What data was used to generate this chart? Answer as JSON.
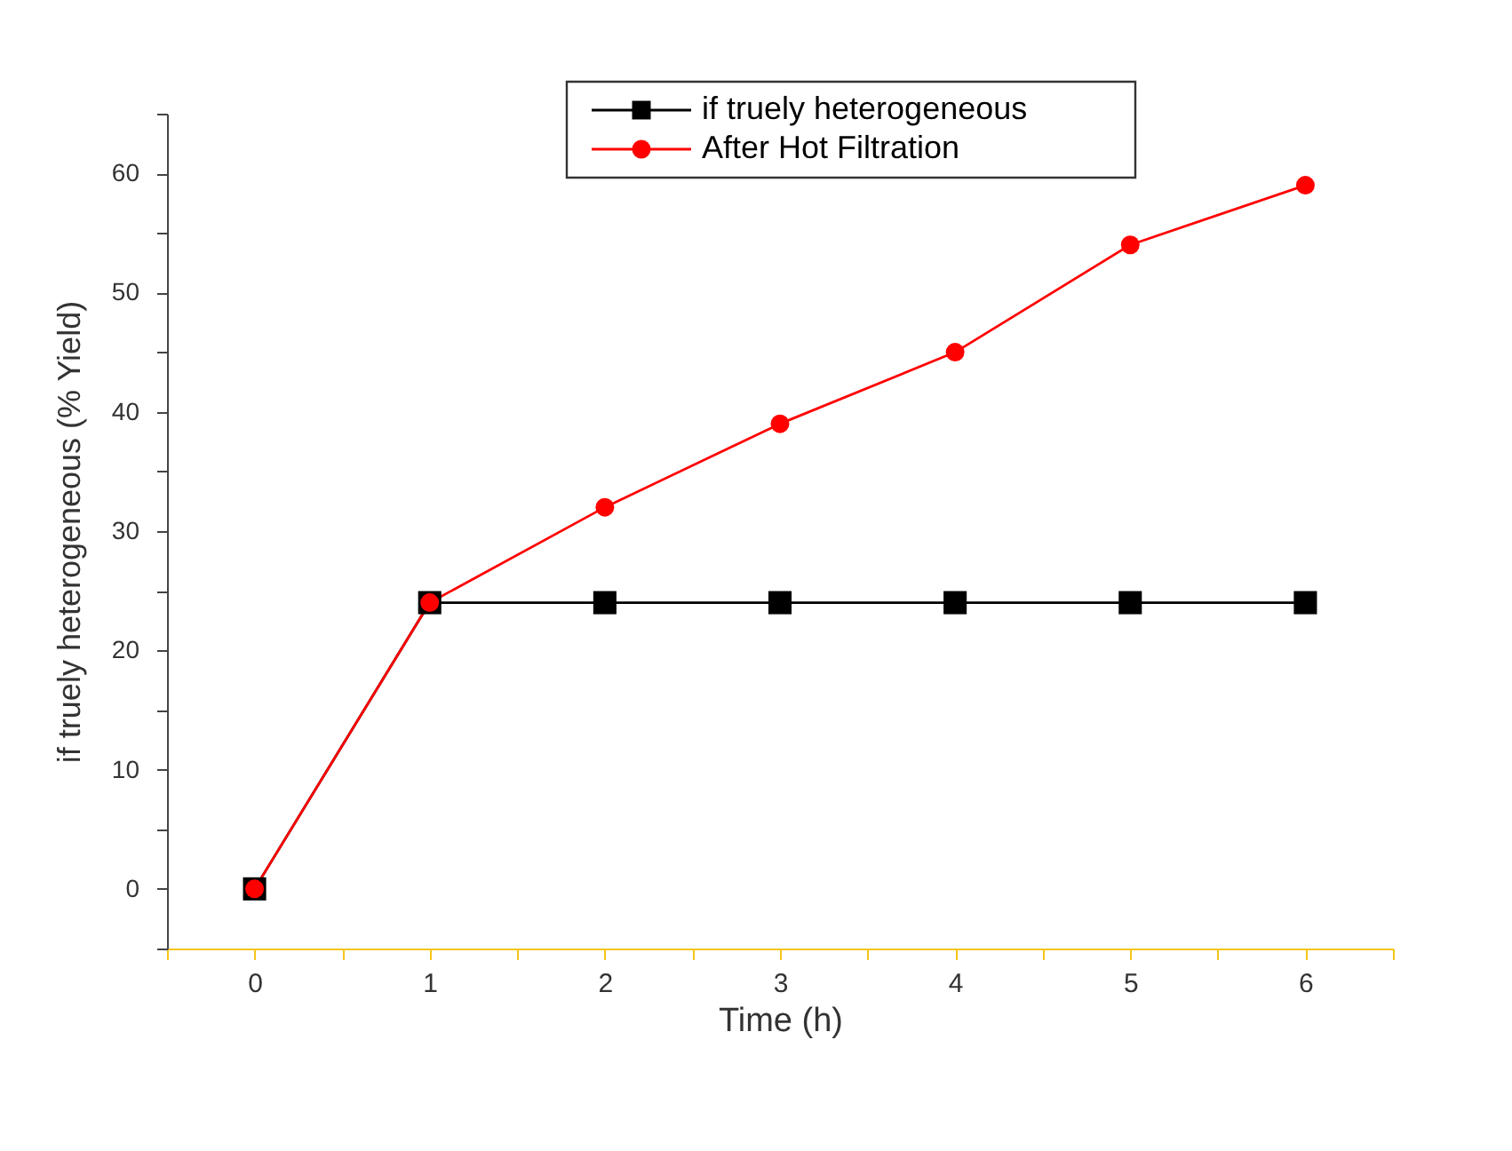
{
  "chart_data": {
    "type": "line",
    "xlabel": "Time (h)",
    "ylabel": "if truely heterogeneous (% Yield)",
    "x": [
      0,
      1,
      2,
      3,
      4,
      5,
      6
    ],
    "series": [
      {
        "name": "if truely heterogeneous",
        "color": "#000000",
        "marker": "square",
        "values": [
          0,
          24,
          24,
          24,
          24,
          24,
          24
        ]
      },
      {
        "name": "After Hot Filtration",
        "color": "#ff0000",
        "marker": "circle",
        "values": [
          0,
          24,
          32,
          39,
          45,
          54,
          59
        ]
      }
    ],
    "xlim": [
      -0.5,
      6.5
    ],
    "ylim": [
      -5,
      65
    ],
    "xticks": [
      {
        "value": -0.5,
        "label": null
      },
      0,
      {
        "value": 0.5,
        "label": null
      },
      1,
      {
        "value": 1.5,
        "label": null
      },
      2,
      {
        "value": 2.5,
        "label": null
      },
      3,
      {
        "value": 3.5,
        "label": null
      },
      4,
      {
        "value": 4.5,
        "label": null
      },
      5,
      {
        "value": 5.5,
        "label": null
      },
      6,
      {
        "value": 6.5,
        "label": null
      }
    ],
    "yticks": [
      {
        "value": -5,
        "label": null
      },
      0,
      {
        "value": 5,
        "label": null
      },
      10,
      {
        "value": 15,
        "label": null
      },
      20,
      {
        "value": 25,
        "label": null
      },
      30,
      {
        "value": 35,
        "label": null
      },
      40,
      {
        "value": 45,
        "label": null
      },
      50,
      {
        "value": 55,
        "label": null
      },
      60,
      {
        "value": 65,
        "label": null
      }
    ],
    "grid": false,
    "legend": "top",
    "line_style": "solid"
  }
}
